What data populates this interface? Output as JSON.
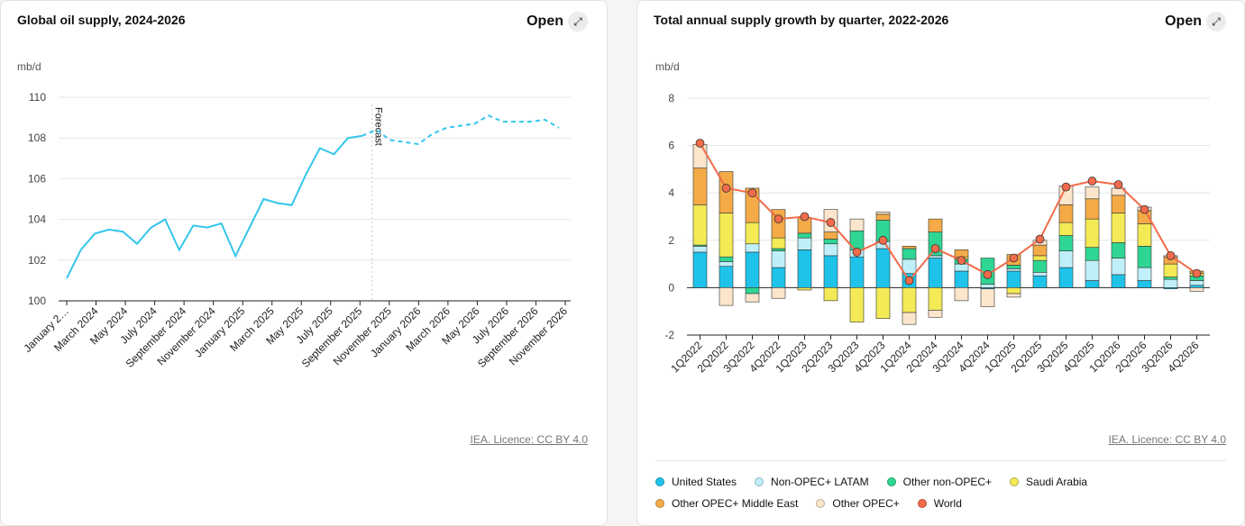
{
  "colors": {
    "line": "#34c6ec",
    "grid": "#e5e5e5",
    "axis": "#222222",
    "forecast_marker": "#cccccc"
  },
  "left": {
    "title": "Global oil supply, 2024-2026",
    "open_label": "Open",
    "open_icon": "expand-icon",
    "unit": "mb/d",
    "licence": "IEA. Licence: CC BY 4.0"
  },
  "right": {
    "title": "Total annual supply growth by quarter, 2022-2026",
    "open_label": "Open",
    "open_icon": "expand-icon",
    "unit": "mb/d",
    "licence": "IEA. Licence: CC BY 4.0"
  },
  "chart_data": [
    {
      "type": "line",
      "title": "Global oil supply, 2024-2026",
      "ylabel": "mb/d",
      "ylim": [
        100,
        110
      ],
      "yticks": [
        100,
        102,
        104,
        106,
        108,
        110
      ],
      "x_tick_labels": [
        "January 2…",
        "March 2024",
        "May 2024",
        "July 2024",
        "September 2024",
        "November 2024",
        "January 2025",
        "March 2025",
        "May 2025",
        "July 2025",
        "September 2025",
        "November 2025",
        "January 2026",
        "March 2026",
        "May 2026",
        "July 2026",
        "September 2026",
        "November 2026"
      ],
      "annotation": "Forecast",
      "forecast_start_index": 22,
      "values": [
        101.1,
        102.5,
        103.3,
        103.5,
        103.4,
        102.8,
        103.6,
        104.0,
        102.5,
        103.7,
        103.6,
        103.8,
        102.2,
        103.6,
        105.0,
        104.8,
        104.7,
        106.2,
        107.5,
        107.2,
        108.0,
        108.1,
        108.4,
        107.9,
        107.8,
        107.7,
        108.2,
        108.5,
        108.6,
        108.7,
        109.1,
        108.8,
        108.8,
        108.8,
        108.9,
        108.5
      ]
    },
    {
      "type": "bar",
      "stacked": true,
      "title": "Total annual supply growth by quarter, 2022-2026",
      "ylabel": "mb/d",
      "ylim": [
        -2,
        8
      ],
      "yticks": [
        -2,
        0,
        2,
        4,
        6,
        8
      ],
      "categories": [
        "1Q2022",
        "2Q2022",
        "3Q2022",
        "4Q2022",
        "1Q2023",
        "2Q2023",
        "3Q2023",
        "4Q2023",
        "1Q2024",
        "2Q2024",
        "3Q2024",
        "4Q2024",
        "1Q2025",
        "2Q2025",
        "3Q2025",
        "4Q2025",
        "1Q2026",
        "2Q2026",
        "3Q2026",
        "4Q2026"
      ],
      "series": [
        {
          "name": "United States",
          "color": "#1fc3ea",
          "values": [
            1.5,
            0.9,
            1.5,
            0.85,
            1.6,
            1.35,
            1.3,
            1.65,
            0.6,
            1.25,
            0.7,
            -0.05,
            0.7,
            0.5,
            0.85,
            0.3,
            0.55,
            0.3,
            -0.05,
            0.1
          ]
        },
        {
          "name": "Non-OPEC+ LATAM",
          "color": "#bff0fa",
          "values": [
            0.25,
            0.2,
            0.35,
            0.7,
            0.5,
            0.5,
            0.3,
            0.3,
            0.6,
            0.1,
            0.3,
            0.15,
            0.1,
            0.15,
            0.7,
            0.85,
            0.7,
            0.55,
            0.35,
            0.2
          ]
        },
        {
          "name": "Other non-OPEC+",
          "color": "#2fd693",
          "values": [
            0.05,
            0.2,
            -0.25,
            0.1,
            0.2,
            0.2,
            0.8,
            0.9,
            0.45,
            1.0,
            0.2,
            1.1,
            0.15,
            0.5,
            0.65,
            0.55,
            0.65,
            0.9,
            0.1,
            0.2
          ]
        },
        {
          "name": "Saudi Arabia",
          "color": "#f3ea55",
          "values": [
            1.7,
            1.85,
            0.9,
            0.45,
            -0.1,
            -0.55,
            -1.45,
            -1.3,
            -1.05,
            -0.95,
            0.1,
            0.0,
            -0.25,
            0.2,
            0.55,
            1.2,
            1.25,
            0.95,
            0.55,
            0.1
          ]
        },
        {
          "name": "Other OPEC+ Middle East",
          "color": "#f4ab47",
          "values": [
            1.55,
            1.75,
            1.45,
            1.2,
            0.65,
            0.3,
            0.0,
            0.25,
            0.1,
            0.55,
            0.3,
            0.0,
            0.45,
            0.45,
            0.75,
            0.85,
            0.75,
            0.55,
            0.3,
            0.1
          ]
        },
        {
          "name": "Other OPEC+",
          "color": "#fbe5cb",
          "values": [
            1.0,
            -0.75,
            -0.35,
            -0.45,
            0.0,
            0.95,
            0.5,
            0.1,
            -0.5,
            -0.3,
            -0.55,
            -0.75,
            -0.15,
            0.2,
            0.8,
            0.5,
            0.3,
            0.15,
            0.05,
            -0.15
          ]
        }
      ],
      "world": {
        "name": "World",
        "color": "#f26b4a",
        "values": [
          6.1,
          4.2,
          4.0,
          2.9,
          3.0,
          2.75,
          1.5,
          2.0,
          0.3,
          1.65,
          1.15,
          0.55,
          1.25,
          2.05,
          4.25,
          4.5,
          4.35,
          3.3,
          1.35,
          0.6
        ]
      }
    }
  ]
}
